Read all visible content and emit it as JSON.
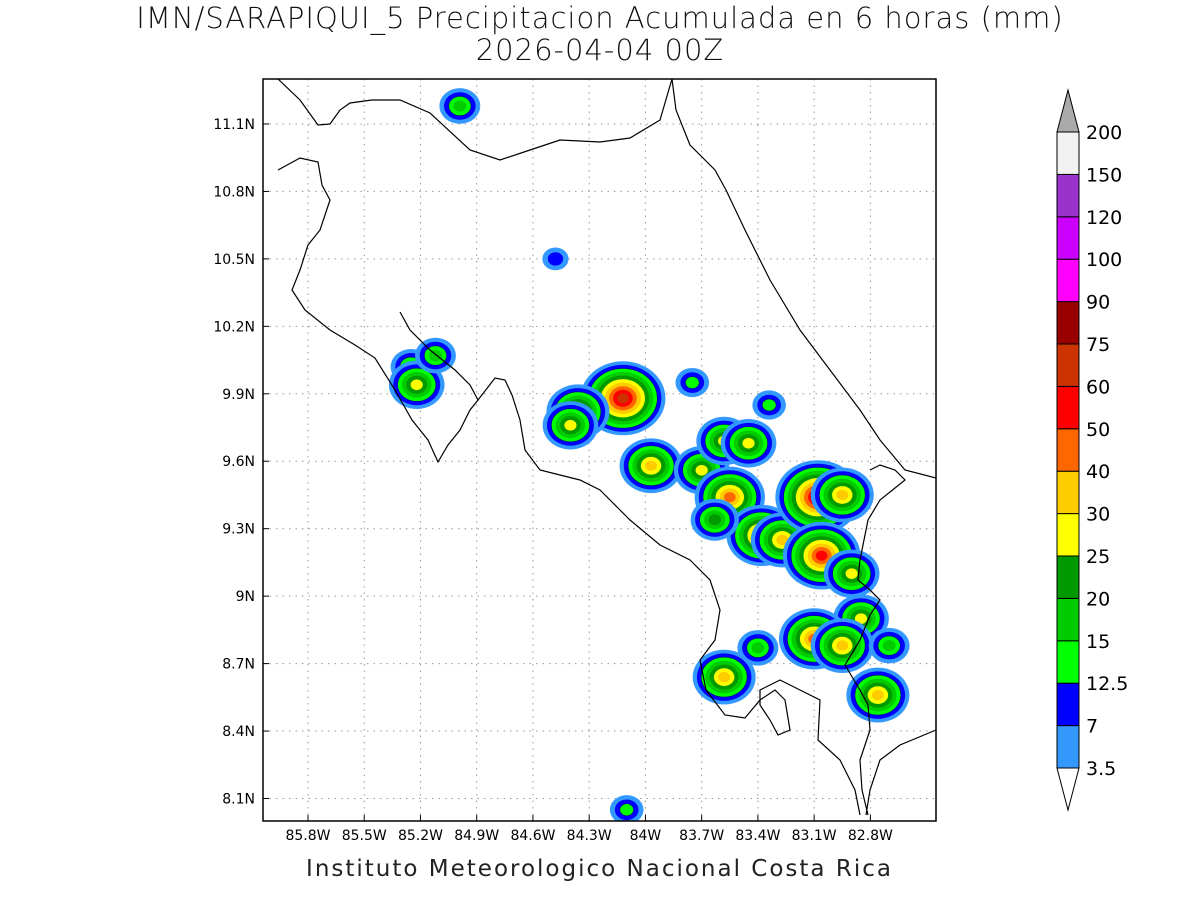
{
  "title": "IMN/SARAPIQUI_5 Precipitacion Acumulada en 6 horas (mm)",
  "subtitle": "2026-04-04 00Z",
  "footer": "Instituto Meteorologico Nacional Costa Rica",
  "lat_ticks": [
    "11.1N",
    "10.8N",
    "10.5N",
    "10.2N",
    "9.9N",
    "9.6N",
    "9.3N",
    "9N",
    "8.7N",
    "8.4N",
    "8.1N"
  ],
  "lon_ticks": [
    "85.8W",
    "85.5W",
    "85.2W",
    "84.9W",
    "84.6W",
    "84.3W",
    "84W",
    "83.7W",
    "83.4W",
    "83.1W",
    "82.8W"
  ],
  "colorbar": {
    "levels": [
      "3.5",
      "7",
      "12.5",
      "15",
      "20",
      "25",
      "30",
      "40",
      "50",
      "60",
      "75",
      "90",
      "100",
      "120",
      "150",
      "200"
    ],
    "colors": [
      "#66ffff",
      "#3399ff",
      "#0000ff",
      "#00ff00",
      "#00cc00",
      "#009900",
      "#ffff00",
      "#ffcc00",
      "#ff6600",
      "#ff0000",
      "#cc3300",
      "#990000",
      "#ff00ff",
      "#cc00ff",
      "#9933cc",
      "#f2f2f2",
      "#aaaaaa"
    ]
  },
  "precip_cells": [
    {
      "lon": -84.99,
      "lat": 11.18,
      "peak": 15
    },
    {
      "lon": -84.12,
      "lat": 9.88,
      "peak": 60
    },
    {
      "lon": -84.36,
      "lat": 9.82,
      "peak": 30
    },
    {
      "lon": -84.4,
      "lat": 9.76,
      "peak": 25
    },
    {
      "lon": -85.25,
      "lat": 10.02,
      "peak": 15
    },
    {
      "lon": -85.22,
      "lat": 9.94,
      "peak": 25
    },
    {
      "lon": -85.12,
      "lat": 10.07,
      "peak": 15
    },
    {
      "lon": -84.48,
      "lat": 10.5,
      "peak": 7
    },
    {
      "lon": -83.97,
      "lat": 9.58,
      "peak": 30
    },
    {
      "lon": -83.7,
      "lat": 9.56,
      "peak": 25
    },
    {
      "lon": -83.58,
      "lat": 9.69,
      "peak": 25
    },
    {
      "lon": -83.45,
      "lat": 9.68,
      "peak": 25
    },
    {
      "lon": -83.55,
      "lat": 9.44,
      "peak": 40
    },
    {
      "lon": -83.38,
      "lat": 9.27,
      "peak": 40
    },
    {
      "lon": -83.27,
      "lat": 9.25,
      "peak": 30
    },
    {
      "lon": -83.14,
      "lat": 9.47,
      "peak": 25
    },
    {
      "lon": -83.08,
      "lat": 9.44,
      "peak": 60
    },
    {
      "lon": -83.06,
      "lat": 9.18,
      "peak": 50
    },
    {
      "lon": -82.95,
      "lat": 9.45,
      "peak": 30
    },
    {
      "lon": -82.9,
      "lat": 9.1,
      "peak": 25
    },
    {
      "lon": -82.85,
      "lat": 8.9,
      "peak": 25
    },
    {
      "lon": -83.1,
      "lat": 8.81,
      "peak": 40
    },
    {
      "lon": -82.95,
      "lat": 8.78,
      "peak": 30
    },
    {
      "lon": -83.4,
      "lat": 8.77,
      "peak": 15
    },
    {
      "lon": -83.58,
      "lat": 8.64,
      "peak": 30
    },
    {
      "lon": -82.76,
      "lat": 8.56,
      "peak": 30
    },
    {
      "lon": -83.63,
      "lat": 9.34,
      "peak": 20
    },
    {
      "lon": -83.75,
      "lat": 9.95,
      "peak": 12.5
    },
    {
      "lon": -83.34,
      "lat": 9.85,
      "peak": 12.5
    },
    {
      "lon": -84.1,
      "lat": 8.05,
      "peak": 12.5
    },
    {
      "lon": -82.7,
      "lat": 8.78,
      "peak": 15
    }
  ]
}
